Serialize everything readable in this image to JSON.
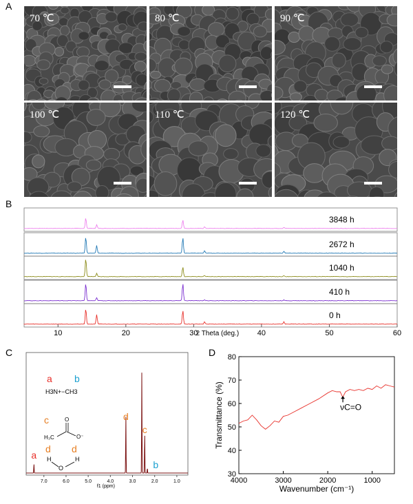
{
  "panel_labels": {
    "a": "A",
    "b": "B",
    "c": "C",
    "d": "D"
  },
  "sem": {
    "temps": [
      "70 ℃",
      "80 ℃",
      "90 ℃",
      "100 ℃",
      "110 ℃",
      "120 ℃"
    ]
  },
  "xrd": {
    "xlabel": "2 Theta (deg.)",
    "xticks": [
      "10",
      "20",
      "30",
      "40",
      "50",
      "60"
    ],
    "traces": [
      {
        "label": "3848 h",
        "color": "#ee82ee"
      },
      {
        "label": "2672 h",
        "color": "#1f77b4"
      },
      {
        "label": "1040 h",
        "color": "#8c8c1a"
      },
      {
        "label": "410 h",
        "color": "#7b2fd0"
      },
      {
        "label": "0 h",
        "color": "#e8302a"
      }
    ],
    "peaks": [
      {
        "x": 14.1,
        "h": [
          0.55,
          0.85,
          0.95,
          0.9,
          0.8
        ]
      },
      {
        "x": 15.7,
        "h": [
          0.2,
          0.4,
          0.18,
          0.15,
          0.5
        ]
      },
      {
        "x": 28.4,
        "h": [
          0.45,
          0.8,
          0.5,
          0.9,
          0.7
        ]
      },
      {
        "x": 31.6,
        "h": [
          0.08,
          0.12,
          0.06,
          0.05,
          0.12
        ]
      },
      {
        "x": 43.3,
        "h": [
          0.05,
          0.1,
          0.05,
          0.04,
          0.12
        ]
      }
    ]
  },
  "nmr": {
    "xlabel": "f1 (ppm)",
    "xticks": [
      "7.0",
      "6.0",
      "5.0",
      "4.0",
      "3.0",
      "2.0",
      "1.0"
    ],
    "legend": {
      "a": "a",
      "b": "b",
      "c": "c",
      "d1": "d",
      "d2": "d",
      "methylammonium": "H3N+−CH3",
      "acetate": "H3C–C(=O)O−",
      "water": "H–O–H"
    },
    "peak_labels": [
      {
        "label": "a",
        "ppm": 7.45,
        "color": "#e8302a"
      },
      {
        "label": "d",
        "ppm": 3.3,
        "color": "#e67e22"
      },
      {
        "label": "c",
        "ppm": 2.45,
        "color": "#e67e22"
      },
      {
        "label": "b",
        "ppm": 1.95,
        "color": "#1a9fd0"
      }
    ],
    "peaks": [
      {
        "ppm": 7.45,
        "h": 0.09
      },
      {
        "ppm": 3.3,
        "h": 0.57
      },
      {
        "ppm": 2.58,
        "h": 1.0
      },
      {
        "ppm": 2.45,
        "h": 0.4
      },
      {
        "ppm": 2.33,
        "h": 0.05
      }
    ]
  },
  "chart_data": {
    "type": "line",
    "xlabel": "Wavenumber (cm⁻¹)",
    "ylabel": "Transmittance (%)",
    "xlim": [
      4000,
      500
    ],
    "ylim": [
      30,
      80
    ],
    "xticks": [
      "4000",
      "3000",
      "2000",
      "1000"
    ],
    "yticks": [
      "30",
      "40",
      "50",
      "60",
      "70",
      "80"
    ],
    "annotation": "νC=O",
    "series": [
      {
        "color": "#e8302a",
        "x": [
          4000,
          3900,
          3800,
          3700,
          3600,
          3500,
          3400,
          3300,
          3200,
          3100,
          3000,
          2900,
          2800,
          2600,
          2400,
          2200,
          2000,
          1900,
          1800,
          1720,
          1660,
          1640,
          1600,
          1500,
          1400,
          1300,
          1200,
          1100,
          1000,
          900,
          800,
          700,
          600,
          500
        ],
        "y": [
          51.5,
          52.5,
          53,
          55,
          53,
          50.5,
          49,
          50.5,
          52.5,
          52,
          54.5,
          55,
          56,
          58,
          60,
          62,
          64.5,
          65.5,
          65,
          65,
          62.5,
          63.5,
          65,
          66,
          65.5,
          66,
          65.5,
          66.5,
          66,
          67.5,
          66.5,
          68,
          67.5,
          67
        ]
      }
    ]
  }
}
